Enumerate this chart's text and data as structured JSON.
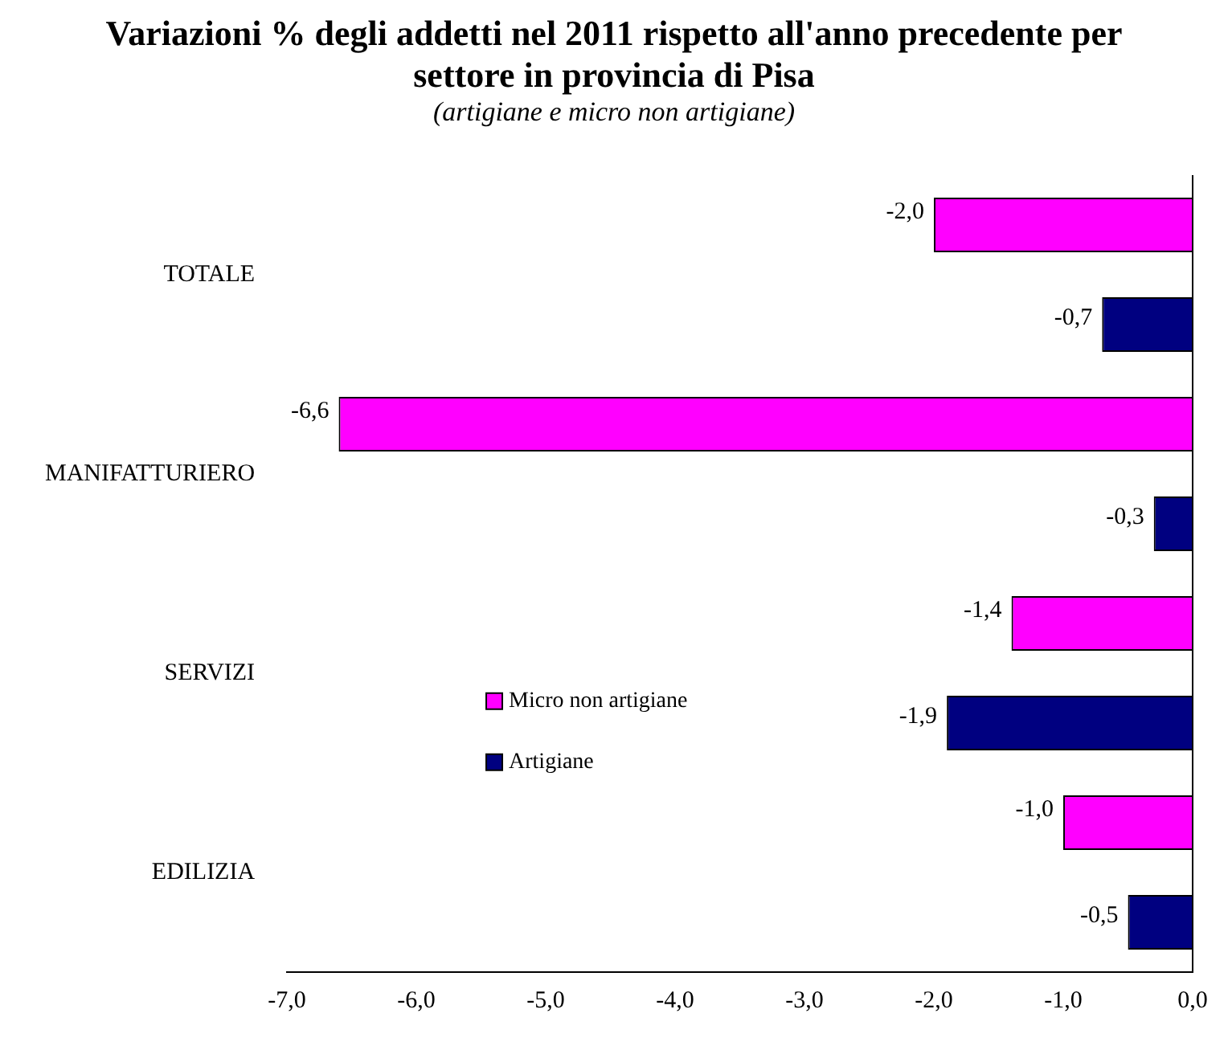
{
  "chart_data": {
    "type": "bar",
    "orientation": "horizontal",
    "title": "Variazioni % degli addetti nel 2011 rispetto all'anno precedente per settore in provincia di Pisa",
    "subtitle": "(artigiane e micro non artigiane)",
    "categories": [
      "TOTALE",
      "MANIFATTURIERO",
      "SERVIZI",
      "EDILIZIA"
    ],
    "series": [
      {
        "name": "Micro non artigiane",
        "color": "#ff00ff",
        "values": [
          -2.0,
          -6.6,
          -1.4,
          -1.0
        ],
        "value_labels": [
          "-2,0",
          "-6,6",
          "-1,4",
          "-1,0"
        ]
      },
      {
        "name": "Artigiane",
        "color": "#000080",
        "values": [
          -0.7,
          -0.3,
          -1.9,
          -0.5
        ],
        "value_labels": [
          "-0,7",
          "-0,3",
          "-1,9",
          "-0,5"
        ]
      }
    ],
    "xlim": [
      -7,
      0
    ],
    "xticks": [
      {
        "value": -7,
        "label": "-7,0"
      },
      {
        "value": -6,
        "label": "-6,0"
      },
      {
        "value": -5,
        "label": "-5,0"
      },
      {
        "value": -4,
        "label": "-4,0"
      },
      {
        "value": -3,
        "label": "-3,0"
      },
      {
        "value": -2,
        "label": "-2,0"
      },
      {
        "value": -1,
        "label": "-1,0"
      },
      {
        "value": 0,
        "label": "0,0"
      }
    ],
    "grid": false,
    "legend": "center"
  }
}
